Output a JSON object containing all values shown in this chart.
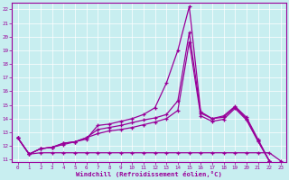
{
  "xlabel": "Windchill (Refroidissement éolien,°C)",
  "background_color": "#c8eef0",
  "line_color": "#990099",
  "grid_color": "#ffffff",
  "xlim": [
    -0.5,
    23.5
  ],
  "ylim": [
    10.8,
    22.5
  ],
  "yticks": [
    11,
    12,
    13,
    14,
    15,
    16,
    17,
    18,
    19,
    20,
    21,
    22
  ],
  "xticks": [
    0,
    1,
    2,
    3,
    4,
    5,
    6,
    7,
    8,
    9,
    10,
    11,
    12,
    13,
    14,
    15,
    16,
    17,
    18,
    19,
    20,
    21,
    22,
    23
  ],
  "series": [
    [
      12.6,
      11.4,
      11.8,
      11.9,
      12.1,
      12.3,
      12.5,
      13.5,
      13.6,
      13.8,
      14.0,
      14.3,
      14.8,
      16.6,
      19.0,
      22.2,
      14.5,
      14.0,
      14.2,
      14.9,
      14.1,
      12.5,
      10.9,
      null
    ],
    [
      12.6,
      11.4,
      11.8,
      11.9,
      12.2,
      12.3,
      12.6,
      13.2,
      13.35,
      13.5,
      13.7,
      13.9,
      14.05,
      14.3,
      15.3,
      20.3,
      14.4,
      14.0,
      14.1,
      14.85,
      14.0,
      12.4,
      10.9,
      null
    ],
    [
      12.6,
      11.4,
      11.8,
      11.9,
      12.2,
      12.3,
      12.6,
      12.9,
      13.1,
      13.2,
      13.35,
      13.55,
      13.75,
      14.0,
      14.6,
      19.6,
      14.2,
      13.8,
      13.95,
      14.75,
      13.9,
      12.35,
      10.9,
      null
    ],
    [
      12.6,
      11.4,
      11.5,
      11.5,
      11.5,
      11.5,
      11.5,
      11.5,
      11.5,
      11.5,
      11.5,
      11.5,
      11.5,
      11.5,
      11.5,
      11.5,
      11.5,
      11.5,
      11.5,
      11.5,
      11.5,
      11.5,
      11.5,
      10.9
    ]
  ]
}
